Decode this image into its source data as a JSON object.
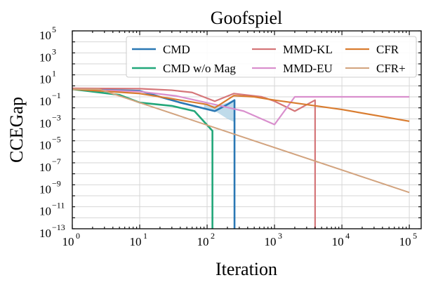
{
  "chart_data": {
    "type": "line",
    "title": "Goofspiel",
    "xlabel": "Iteration",
    "ylabel": "CCEGap",
    "xscale": "log",
    "yscale": "log",
    "xlim": [
      1,
      150000
    ],
    "ylim": [
      1e-13,
      100000.0
    ],
    "grid": true,
    "legend": {
      "placement": "top-right",
      "columns": 3
    },
    "x_ticks": [
      {
        "base": "10",
        "exp": "0",
        "value": 1
      },
      {
        "base": "10",
        "exp": "1",
        "value": 10
      },
      {
        "base": "10",
        "exp": "2",
        "value": 100
      },
      {
        "base": "10",
        "exp": "3",
        "value": 1000
      },
      {
        "base": "10",
        "exp": "4",
        "value": 10000
      },
      {
        "base": "10",
        "exp": "5",
        "value": 100000
      }
    ],
    "y_ticks": [
      {
        "base": "10",
        "exp": "5",
        "value": 100000.0
      },
      {
        "base": "10",
        "exp": "3",
        "value": 1000.0
      },
      {
        "base": "10",
        "exp": "1",
        "value": 10
      },
      {
        "base": "10",
        "exp": "−1",
        "value": 0.1
      },
      {
        "base": "10",
        "exp": "−3",
        "value": 0.001
      },
      {
        "base": "10",
        "exp": "−5",
        "value": 1e-05
      },
      {
        "base": "10",
        "exp": "−7",
        "value": 1e-07
      },
      {
        "base": "10",
        "exp": "−9",
        "value": 1e-09
      },
      {
        "base": "10",
        "exp": "−11",
        "value": 1e-11
      },
      {
        "base": "10",
        "exp": "−13",
        "value": 1e-13
      }
    ],
    "shaded_band": {
      "series": "CMD",
      "fill": "#a9cfe3",
      "x": [
        90,
        140,
        200,
        255
      ],
      "upper": [
        0.02,
        0.015,
        0.03,
        0.06
      ],
      "lower": [
        0.008,
        0.004,
        0.001,
        0.0005
      ]
    },
    "series": [
      {
        "name": "CMD",
        "color": "#2a78b4",
        "width": 2.6,
        "x": [
          1,
          10,
          20,
          40,
          130,
          200,
          255,
          255
        ],
        "y": [
          0.5,
          0.35,
          0.1,
          0.03,
          0.005,
          0.02,
          0.05,
          1e-13
        ]
      },
      {
        "name": "CMD w/o Mag",
        "color": "#22a77a",
        "width": 2.6,
        "x": [
          1,
          2,
          5,
          10,
          30,
          65,
          120,
          120
        ],
        "y": [
          0.5,
          0.3,
          0.15,
          0.03,
          0.015,
          0.005,
          8e-05,
          1e-13
        ]
      },
      {
        "name": "MMD-KL",
        "color": "#d57679",
        "width": 2.2,
        "x": [
          1,
          10,
          30,
          60,
          130,
          250,
          650,
          1000,
          2000,
          4000,
          4000
        ],
        "y": [
          0.6,
          0.55,
          0.4,
          0.25,
          0.04,
          0.2,
          0.1,
          0.04,
          0.005,
          0.05,
          1e-13
        ]
      },
      {
        "name": "MMD-EU",
        "color": "#d98fcd",
        "width": 2.2,
        "x": [
          1,
          10,
          35,
          130,
          350,
          1000,
          2000,
          100000
        ],
        "y": [
          0.5,
          0.3,
          0.12,
          0.02,
          0.005,
          0.0003,
          0.1,
          0.1
        ]
      },
      {
        "name": "CFR",
        "color": "#d97c2f",
        "width": 2.2,
        "x": [
          1,
          10,
          100,
          130,
          250,
          500,
          1000,
          10000,
          100000
        ],
        "y": [
          0.5,
          0.2,
          0.02,
          0.01,
          0.13,
          0.1,
          0.05,
          0.007,
          0.0006
        ]
      },
      {
        "name": "CFR+",
        "color": "#d2a37e",
        "width": 2.0,
        "x": [
          1,
          2.5,
          100000
        ],
        "y": [
          0.5,
          0.5,
          2e-10
        ]
      }
    ]
  }
}
